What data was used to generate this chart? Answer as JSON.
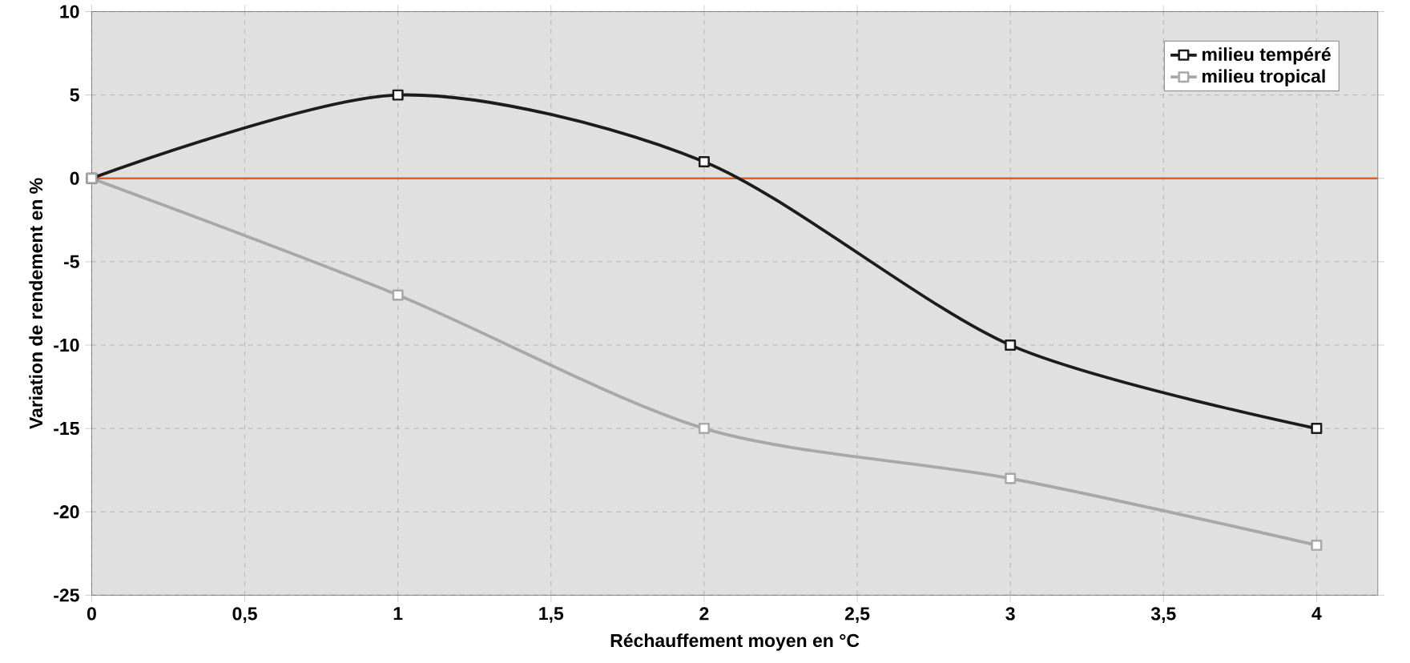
{
  "chart_data": {
    "type": "line",
    "xlabel": "Réchauffement moyen en °C",
    "ylabel": "Variation de rendement en %",
    "x": [
      0,
      1,
      2,
      3,
      4
    ],
    "series": [
      {
        "name": "milieu tempéré",
        "color": "#1c1c1c",
        "values": [
          0,
          5,
          1,
          -10,
          -15
        ]
      },
      {
        "name": "milieu tropical",
        "color": "#a8a8a8",
        "values": [
          0,
          -7,
          -15,
          -18,
          -22
        ]
      }
    ],
    "xlim": [
      0,
      4.2
    ],
    "ylim": [
      -25,
      10
    ],
    "xticks": [
      0,
      {
        "value": 0.5,
        "label": "0,5"
      },
      1,
      {
        "value": 1.5,
        "label": "1,5"
      },
      2,
      {
        "value": 2.5,
        "label": "2,5"
      },
      3,
      {
        "value": 3.5,
        "label": "3,5"
      },
      4
    ],
    "yticks": [
      -25,
      -20,
      -15,
      -10,
      -5,
      0,
      5,
      10
    ],
    "ref_lines": [
      {
        "axis": "y",
        "value": 0,
        "color": "#d9622b"
      }
    ],
    "grid": true,
    "legend": "top right",
    "marker": "square",
    "line_style": "solid"
  }
}
